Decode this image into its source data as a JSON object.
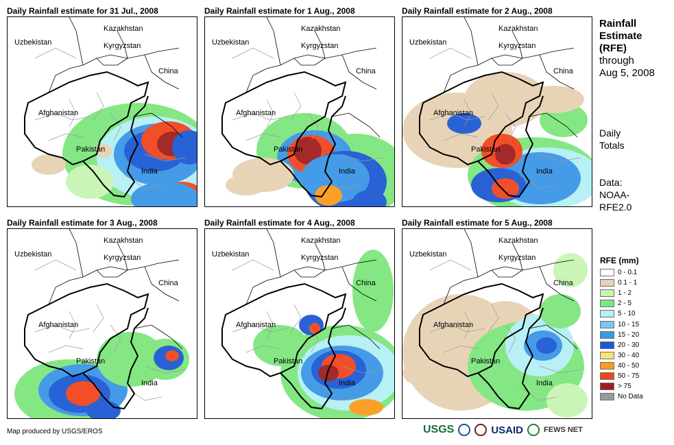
{
  "panels": [
    {
      "title": "Daily Rainfall estimate for 31 Jul., 2008"
    },
    {
      "title": "Daily Rainfall estimate for 1 Aug., 2008"
    },
    {
      "title": "Daily Rainfall estimate for 2 Aug., 2008"
    },
    {
      "title": "Daily Rainfall estimate for 3 Aug., 2008"
    },
    {
      "title": "Daily Rainfall estimate for 4 Aug., 2008"
    },
    {
      "title": "Daily Rainfall estimate for 5 Aug., 2008"
    }
  ],
  "map_labels": {
    "kazakhstan": "Kazakhstan",
    "uzbekistan": "Uzbekistan",
    "kyrgyzstan": "Kyrgyzstan",
    "china": "China",
    "afghanistan": "Afghanistan",
    "pakistan": "Pakistan",
    "india": "India"
  },
  "side": {
    "title_line1": "Rainfall",
    "title_line2": "Estimate",
    "title_line3": "(RFE)",
    "title_line4": "through",
    "title_line5": "Aug 5, 2008",
    "daily_line1": "Daily",
    "daily_line2": "Totals",
    "data_line1": "Data:",
    "data_line2": "NOAA-",
    "data_line3": "RFE2.0"
  },
  "legend": {
    "title": "RFE (mm)",
    "items": [
      {
        "label": "0 - 0.1",
        "color": "#ffffff"
      },
      {
        "label": "0.1 - 1",
        "color": "#e6d2b4"
      },
      {
        "label": "1 - 2",
        "color": "#c8f5b4"
      },
      {
        "label": "2 - 5",
        "color": "#7ee67e"
      },
      {
        "label": "5 - 10",
        "color": "#b4f0f5"
      },
      {
        "label": "10 - 15",
        "color": "#78c8f0"
      },
      {
        "label": "15 - 20",
        "color": "#3c96e6"
      },
      {
        "label": "20 - 30",
        "color": "#1e5ad2"
      },
      {
        "label": "30 - 40",
        "color": "#fae178"
      },
      {
        "label": "40 - 50",
        "color": "#fa9b1e"
      },
      {
        "label": "50 - 75",
        "color": "#f0461e"
      },
      {
        "label": "> 75",
        "color": "#a01e1e"
      },
      {
        "label": "No Data",
        "color": "#9b9b9b"
      }
    ]
  },
  "credit": "Map produced by USGS/EROS",
  "logos": {
    "usgs": "USGS",
    "usaid": "USAID",
    "fews": "FEWS NET"
  }
}
